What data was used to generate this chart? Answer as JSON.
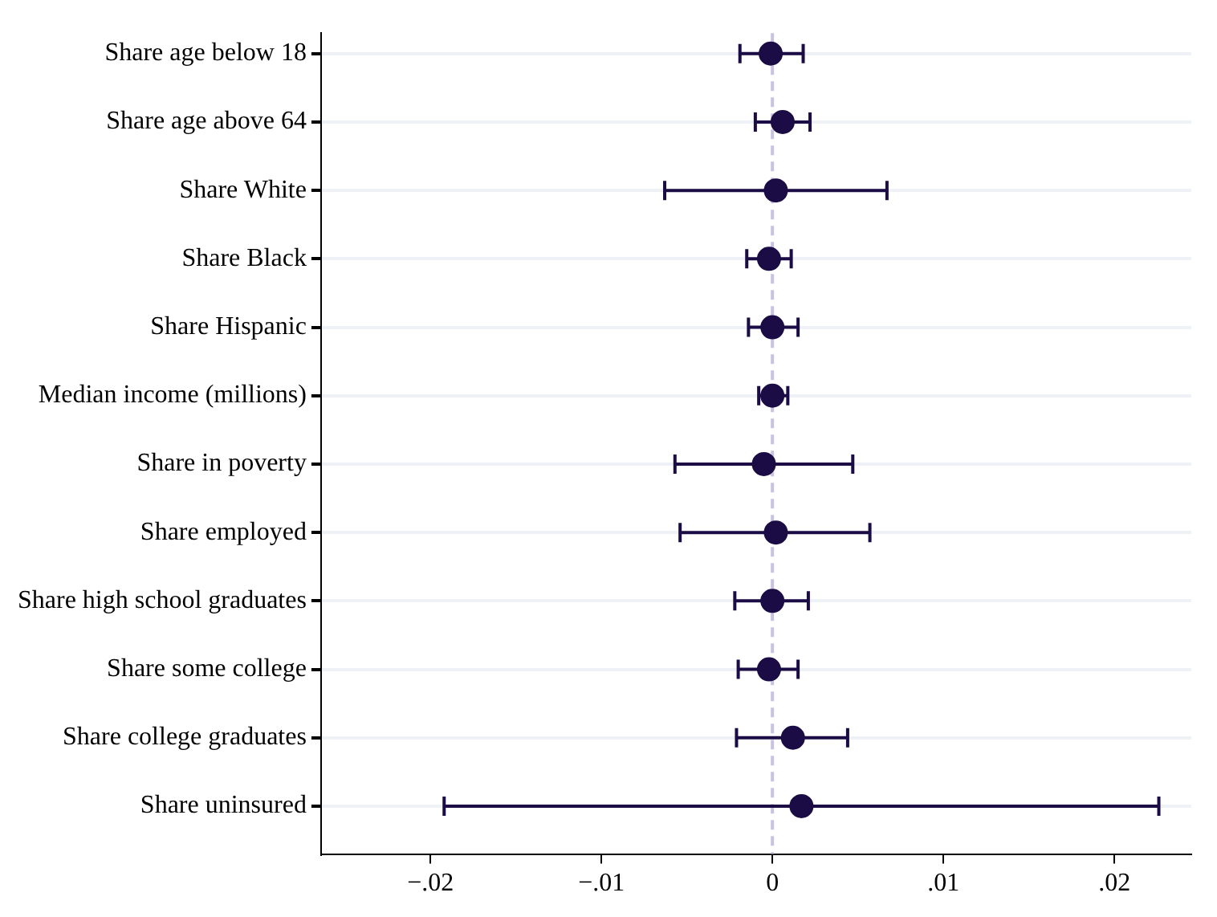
{
  "chart_data": {
    "type": "scatter",
    "orientation": "horizontal",
    "categories": [
      "Share age below 18",
      "Share age above 64",
      "Share White",
      "Share Black",
      "Share Hispanic",
      "Median income (millions)",
      "Share in poverty",
      "Share employed",
      "Share high school graduates",
      "Share some college",
      "Share college graduates",
      "Share uninsured"
    ],
    "series": [
      {
        "color": "#1b0c45",
        "values": [
          -0.0001,
          0.0006,
          0.0002,
          -0.0002,
          0,
          0,
          -0.0005,
          0.0002,
          0,
          -0.0002,
          0.0012,
          0.0017
        ],
        "errors": [
          [
            -0.0019,
            0.0018
          ],
          [
            -0.001,
            0.0022
          ],
          [
            -0.0063,
            0.0067
          ],
          [
            -0.0015,
            0.0011
          ],
          [
            -0.0014,
            0.0015
          ],
          [
            -0.0008,
            0.0009
          ],
          [
            -0.0057,
            0.0047
          ],
          [
            -0.0054,
            0.0057
          ],
          [
            -0.0022,
            0.0021
          ],
          [
            -0.002,
            0.0015
          ],
          [
            -0.0021,
            0.0044
          ],
          [
            -0.0192,
            0.0226
          ]
        ]
      }
    ],
    "xlim": [
      -0.0264,
      0.0245
    ],
    "xticks": [
      {
        "value": -0.02,
        "label": "−.02"
      },
      {
        "value": -0.01,
        "label": "−.01"
      },
      0,
      {
        "value": 0.01,
        "label": ".01"
      },
      {
        "value": 0.02,
        "label": ".02"
      }
    ],
    "ref_lines": [
      {
        "axis": "x",
        "value": 0,
        "color": "#c9c3e0",
        "line_style": "dashed"
      }
    ],
    "grid": "y",
    "marker": "circle",
    "legend": false
  }
}
